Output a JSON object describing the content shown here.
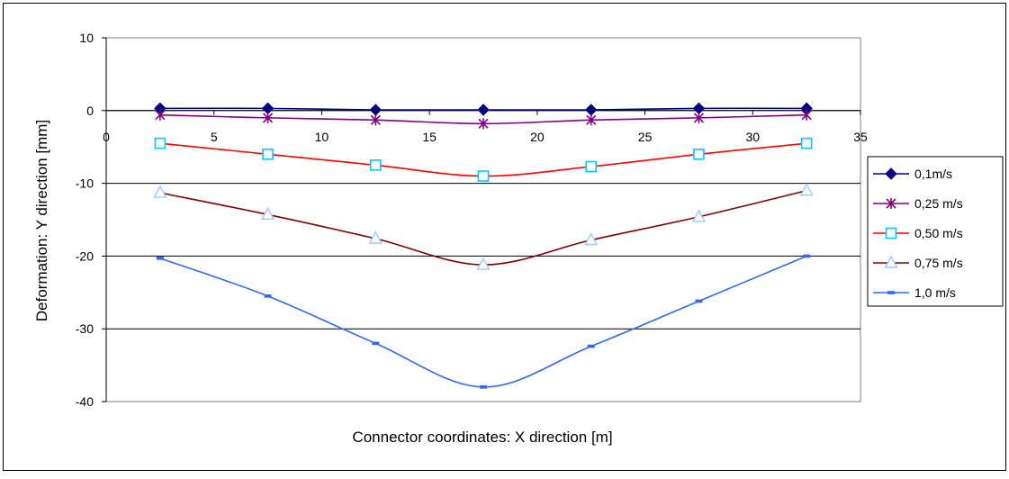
{
  "chart_data": {
    "type": "line",
    "title": "",
    "xlabel": "Connector coordinates: X direction [m]",
    "ylabel": "Deformation: Y direction [mm]",
    "xlim": [
      0,
      35
    ],
    "ylim": [
      -40,
      10
    ],
    "x_ticks": [
      0,
      5,
      10,
      15,
      20,
      25,
      30,
      35
    ],
    "y_ticks": [
      10,
      0,
      -10,
      -20,
      -30,
      -40
    ],
    "x_tick_labels": [
      "0",
      "5",
      "10",
      "15",
      "20",
      "25",
      "30",
      "35"
    ],
    "y_tick_labels": [
      "10",
      "0",
      "-10",
      "-20",
      "-30",
      "-40"
    ],
    "grid": "horizontal",
    "legend_position": "right",
    "x": [
      2.5,
      7.5,
      12.5,
      17.5,
      22.5,
      27.5,
      32.5
    ],
    "series": [
      {
        "name": "0,1m/s",
        "color": "#000080",
        "marker": "diamond",
        "values": [
          0.3,
          0.3,
          0.1,
          0.1,
          0.1,
          0.3,
          0.3
        ]
      },
      {
        "name": "0,25 m/s",
        "color": "#800080",
        "marker": "star",
        "values": [
          -0.6,
          -1.0,
          -1.3,
          -1.8,
          -1.3,
          -1.0,
          -0.6
        ]
      },
      {
        "name": "0,50 m/s",
        "color": "#ff0000",
        "marker": "square",
        "marker_color": "#00ccff",
        "values": [
          -4.5,
          -6.0,
          -7.5,
          -9.0,
          -7.7,
          -6.0,
          -4.5
        ]
      },
      {
        "name": "0,75 m/s",
        "color": "#800000",
        "marker": "triangle",
        "marker_color": "#99ccff",
        "values": [
          -11.3,
          -14.3,
          -17.6,
          -21.2,
          -17.8,
          -14.6,
          -11.0
        ]
      },
      {
        "name": "1,0 m/s",
        "color": "#3366ff",
        "marker": "dash",
        "values": [
          -20.3,
          -25.5,
          -32.0,
          -38.0,
          -32.4,
          -26.2,
          -20.0
        ]
      }
    ]
  }
}
